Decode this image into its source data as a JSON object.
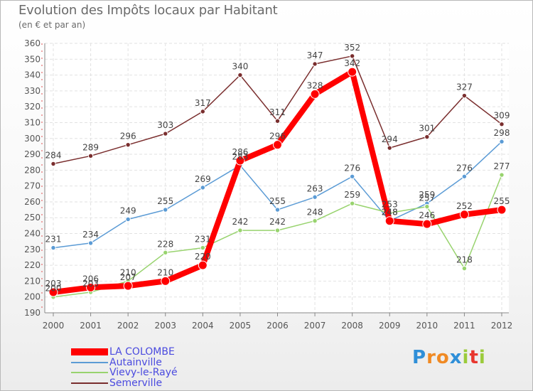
{
  "chart_data": {
    "type": "line",
    "title": "Evolution des Impôts locaux par Habitant",
    "subtitle": "(en € et par an)",
    "x": [
      "2000",
      "2001",
      "2002",
      "2003",
      "2004",
      "2005",
      "2006",
      "2007",
      "2008",
      "2009",
      "2010",
      "2011",
      "2012"
    ],
    "ylim": [
      190,
      360
    ],
    "yticks": [
      190,
      200,
      210,
      220,
      230,
      240,
      250,
      260,
      270,
      280,
      290,
      300,
      310,
      320,
      330,
      340,
      350,
      360
    ],
    "series": [
      {
        "name": "Semerville",
        "color": "#7a2e2e",
        "values": [
          284,
          289,
          296,
          303,
          317,
          340,
          311,
          347,
          352,
          294,
          301,
          327,
          309
        ]
      },
      {
        "name": "Autainville",
        "color": "#5b9bd5",
        "values": [
          231,
          234,
          249,
          255,
          269,
          283,
          255,
          263,
          276,
          248,
          259,
          276,
          298
        ]
      },
      {
        "name": "Vievy-le-Rayé",
        "color": "#98d36e",
        "values": [
          200,
          203,
          210,
          228,
          231,
          242,
          242,
          248,
          259,
          253,
          257,
          218,
          277
        ]
      },
      {
        "name": "LA COLOMBE",
        "color": "#ff0000",
        "values": [
          203,
          206,
          207,
          210,
          220,
          286,
          296,
          328,
          342,
          248,
          246,
          252,
          255
        ]
      }
    ],
    "point_labels": {
      "Semerville": [
        "284",
        "289",
        "296",
        "303",
        "317",
        "340",
        "311",
        "347",
        "352",
        "294",
        "301",
        "327",
        "309"
      ],
      "Autainville": [
        "231",
        "234",
        "249",
        "255",
        "269",
        "283",
        "255",
        "263",
        "276",
        "248",
        "259",
        "276",
        "298"
      ],
      "Vievy-le-Rayé": [
        "200",
        "203",
        "210",
        "228",
        "231",
        "242",
        "242",
        "248",
        "259",
        "253",
        "257",
        "218",
        "277"
      ],
      "LA COLOMBE": [
        "203",
        "206",
        "207",
        "210",
        "220",
        "286",
        "296",
        "328",
        "342",
        "248",
        "246",
        "252",
        "255"
      ]
    },
    "legend": [
      {
        "name": "LA COLOMBE",
        "color": "#ff0000",
        "text_color": "#4a4adf"
      },
      {
        "name": "Autainville",
        "color": "#5b9bd5",
        "text_color": "#4a4adf"
      },
      {
        "name": "Vievy-le-Rayé",
        "color": "#98d36e",
        "text_color": "#4a4adf"
      },
      {
        "name": "Semerville",
        "color": "#7a2e2e",
        "text_color": "#4a4adf"
      }
    ]
  },
  "logo": {
    "letters": [
      "P",
      "r",
      "o",
      "x",
      "i",
      "t",
      "i"
    ],
    "colors": [
      "#2f8fd8",
      "#f08a24",
      "#f08a24",
      "#2f8fd8",
      "#9bcb3b",
      "#e8362e",
      "#9bcb3b"
    ]
  }
}
